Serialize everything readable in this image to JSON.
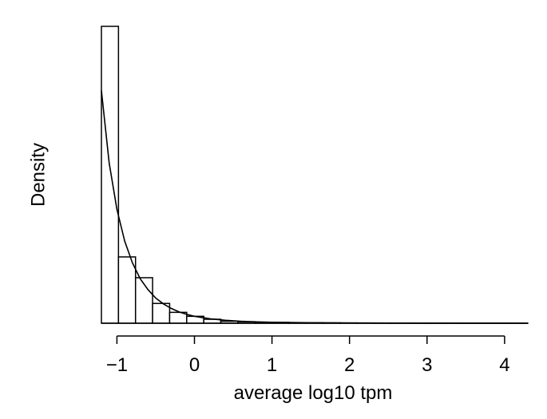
{
  "chart_data": {
    "type": "bar",
    "title": "",
    "xlabel": "average log10 tpm",
    "ylabel": "Density",
    "xlim": [
      -1.2,
      4.3
    ],
    "x_ticks": [
      -1,
      0,
      1,
      2,
      3,
      4
    ],
    "x_tick_labels": [
      "−1",
      "0",
      "1",
      "2",
      "3",
      "4"
    ],
    "y_axis_shown": false,
    "grid": false,
    "legend": "none",
    "bin_edges": [
      -1.2,
      -0.98,
      -0.76,
      -0.54,
      -0.32,
      -0.1,
      0.12,
      0.34,
      0.56,
      0.78,
      1.0,
      1.22,
      1.44,
      1.66,
      1.88,
      2.1,
      2.32,
      2.54,
      2.76,
      2.98,
      3.2,
      3.42,
      3.64,
      3.86,
      4.08,
      4.3
    ],
    "densities": [
      3.0,
      0.67,
      0.46,
      0.2,
      0.11,
      0.07,
      0.04,
      0.02,
      0.015,
      0.01,
      0.008,
      0.006,
      0.005,
      0.004,
      0.003,
      0.0025,
      0.002,
      0.0015,
      0.001,
      0.001,
      0.0008,
      0.0006,
      0.0005,
      0.0004,
      0.0003
    ],
    "density_curve": {
      "x": [
        -1.2,
        -1.1,
        -1.0,
        -0.9,
        -0.8,
        -0.7,
        -0.6,
        -0.5,
        -0.4,
        -0.3,
        -0.2,
        -0.1,
        0.0,
        0.2,
        0.4,
        0.6,
        0.8,
        1.0,
        1.5,
        2.0,
        2.5,
        3.0,
        3.5,
        4.0,
        4.3
      ],
      "y": [
        2.35,
        1.62,
        1.15,
        0.83,
        0.61,
        0.45,
        0.34,
        0.255,
        0.195,
        0.15,
        0.115,
        0.09,
        0.07,
        0.045,
        0.03,
        0.02,
        0.014,
        0.01,
        0.005,
        0.003,
        0.0015,
        0.0008,
        0.0004,
        0.0002,
        0.0001
      ]
    },
    "ylim": [
      0,
      3.0
    ]
  }
}
